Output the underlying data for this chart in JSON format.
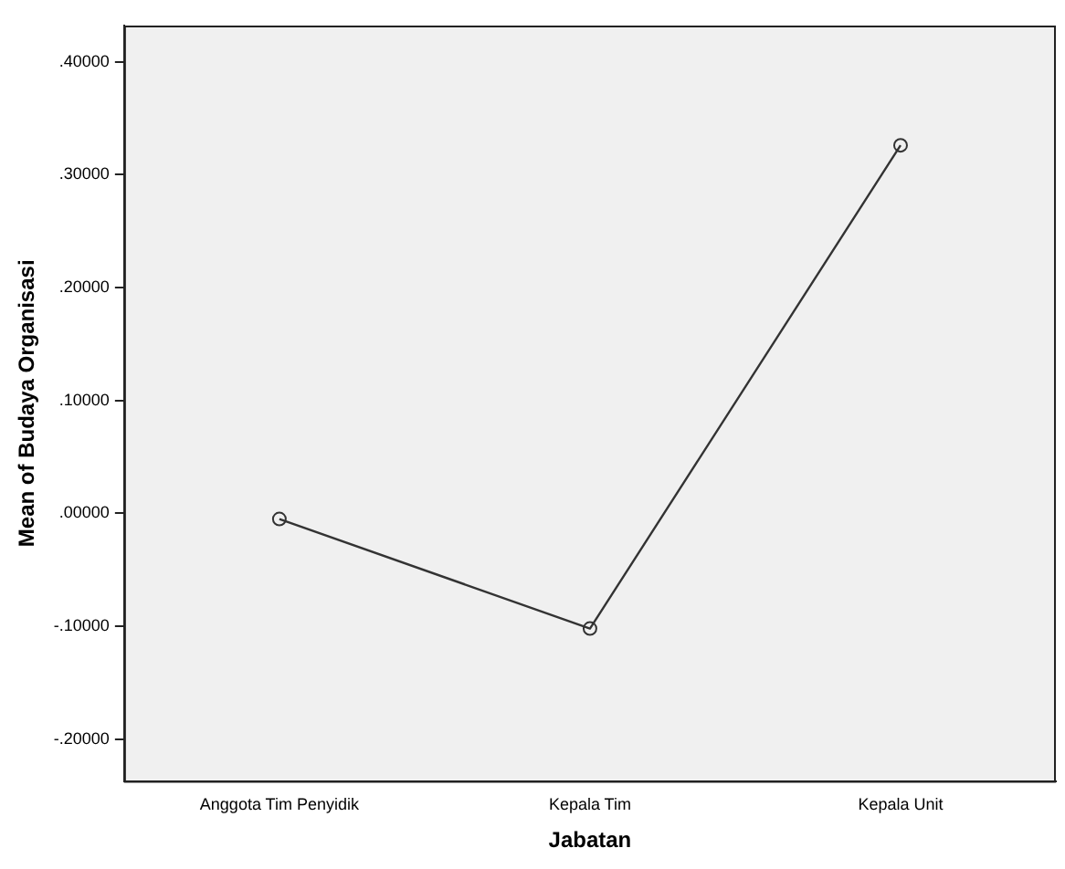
{
  "chart_data": {
    "type": "line",
    "xlabel": "Jabatan",
    "ylabel": "Mean of Budaya Organisasi",
    "categories": [
      "Anggota Tim Penyidik",
      "Kepala Tim",
      "Kepala Unit"
    ],
    "series": [
      {
        "color": "#333333",
        "values": [
          -0.005,
          -0.102,
          0.326
        ]
      }
    ],
    "ylim": [
      -0.237,
      0.432
    ],
    "yticks": [
      {
        "value": -0.2,
        "label": "-.20000"
      },
      {
        "value": -0.1,
        "label": "-.10000"
      },
      {
        "value": 0,
        "label": ".00000"
      },
      {
        "value": 0.1,
        "label": ".10000"
      },
      {
        "value": 0.2,
        "label": ".20000"
      },
      {
        "value": 0.3,
        "label": ".30000"
      },
      {
        "value": 0.4,
        "label": ".40000"
      }
    ],
    "grid": false,
    "legend": false,
    "marker": "circle",
    "line_style": "solid"
  }
}
